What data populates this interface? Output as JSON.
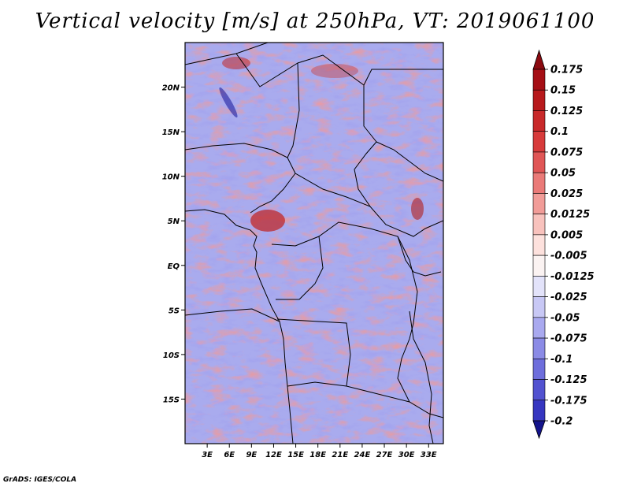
{
  "title": "Vertical velocity [m/s] at 250hPa, VT: 2019061100",
  "credit": "GrADS: IGES/COLA",
  "map": {
    "projection": "lat-lon",
    "region": "Central Africa",
    "variable": "vertical velocity",
    "units": "m/s",
    "level": "250hPa",
    "valid_time": "2019061100",
    "lon_range": [
      0,
      35
    ],
    "lat_range": [
      -20,
      25
    ],
    "x_ticks": [
      {
        "value": 3,
        "label": "3E"
      },
      {
        "value": 6,
        "label": "6E"
      },
      {
        "value": 9,
        "label": "9E"
      },
      {
        "value": 12,
        "label": "12E"
      },
      {
        "value": 15,
        "label": "15E"
      },
      {
        "value": 18,
        "label": "18E"
      },
      {
        "value": 21,
        "label": "21E"
      },
      {
        "value": 24,
        "label": "24E"
      },
      {
        "value": 27,
        "label": "27E"
      },
      {
        "value": 30,
        "label": "30E"
      },
      {
        "value": 33,
        "label": "33E"
      }
    ],
    "y_ticks": [
      {
        "value": 20,
        "label": "20N"
      },
      {
        "value": 15,
        "label": "15N"
      },
      {
        "value": 10,
        "label": "10N"
      },
      {
        "value": 5,
        "label": "5N"
      },
      {
        "value": 0,
        "label": "EQ"
      },
      {
        "value": -5,
        "label": "5S"
      },
      {
        "value": -10,
        "label": "10S"
      },
      {
        "value": -15,
        "label": "15S"
      }
    ]
  },
  "colorbar": {
    "orientation": "vertical",
    "levels": [
      {
        "label": "0.175",
        "color": "#a50f15"
      },
      {
        "label": "0.15",
        "color": "#b7191c"
      },
      {
        "label": "0.125",
        "color": "#c8292a"
      },
      {
        "label": "0.1",
        "color": "#d73b3b"
      },
      {
        "label": "0.075",
        "color": "#e05656"
      },
      {
        "label": "0.05",
        "color": "#ea7a78"
      },
      {
        "label": "0.025",
        "color": "#f19c98"
      },
      {
        "label": "0.0125",
        "color": "#f8c2bd"
      },
      {
        "label": "0.005",
        "color": "#fde1dd"
      },
      {
        "label": "-0.005",
        "color": "#fbf3f2"
      },
      {
        "label": "-0.0125",
        "color": "#e3e3fa"
      },
      {
        "label": "-0.025",
        "color": "#c8c8f5"
      },
      {
        "label": "-0.05",
        "color": "#a9a9ef"
      },
      {
        "label": "-0.075",
        "color": "#8b8be6"
      },
      {
        "label": "-0.1",
        "color": "#6e6edc"
      },
      {
        "label": "-0.125",
        "color": "#5252d0"
      },
      {
        "label": "-0.175",
        "color": "#3636c0"
      },
      {
        "label": "-0.2",
        "color": "#1f1fa8"
      }
    ],
    "top_arrow_color": "#8b0a10",
    "bottom_arrow_color": "#14148c"
  }
}
